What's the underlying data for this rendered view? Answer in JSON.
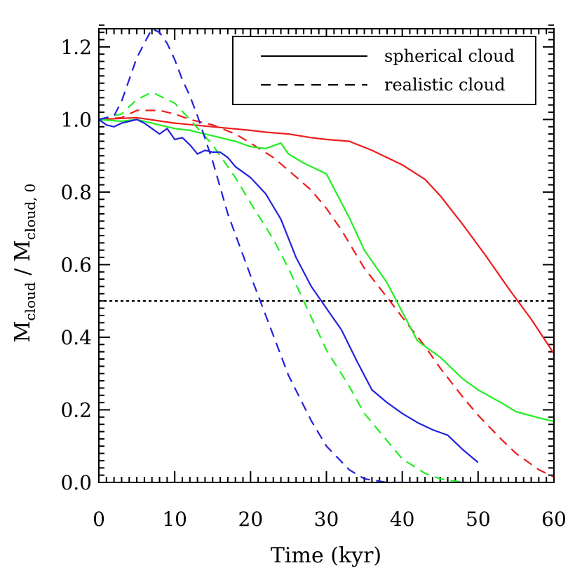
{
  "chart_data": {
    "type": "line",
    "title": "",
    "xlabel": "Time (kyr)",
    "ylabel": {
      "text": "M",
      "sub": "cloud",
      "sep": " / M",
      "sub2": "cloud, 0"
    },
    "xlim": [
      0,
      60
    ],
    "ylim": [
      0,
      1.25
    ],
    "xticks": [
      0,
      10,
      20,
      30,
      40,
      50,
      60
    ],
    "yticks": [
      0.0,
      0.2,
      0.4,
      0.6,
      0.8,
      1.0,
      1.2
    ],
    "xtick_labels": [
      "0",
      "10",
      "20",
      "30",
      "40",
      "50",
      "60"
    ],
    "ytick_labels": [
      "0.0",
      "0.2",
      "0.4",
      "0.6",
      "0.8",
      "1.0",
      "1.2"
    ],
    "grid": false,
    "legend": {
      "placement": "top-right",
      "entries": [
        {
          "label": "spherical cloud",
          "style": "solid"
        },
        {
          "label": "realistic cloud",
          "style": "dashed"
        }
      ]
    },
    "reference_line": {
      "y": 0.5,
      "style": "dotted",
      "color": "#000000"
    },
    "series": [
      {
        "color": "#ee1c1c",
        "style": "solid",
        "x": [
          0,
          5,
          10,
          15,
          20,
          22,
          25,
          28,
          30,
          33,
          36,
          40,
          43,
          45,
          48,
          51,
          54,
          57,
          60
        ],
        "y": [
          1.0,
          1.005,
          0.99,
          0.98,
          0.97,
          0.965,
          0.96,
          0.95,
          0.945,
          0.94,
          0.915,
          0.875,
          0.835,
          0.79,
          0.71,
          0.625,
          0.535,
          0.45,
          0.355
        ]
      },
      {
        "color": "#ee1c1c",
        "style": "dashed",
        "x": [
          0,
          3,
          5,
          8,
          10,
          12,
          15,
          18,
          20,
          23,
          25,
          28,
          30,
          32,
          35,
          38,
          40,
          43,
          45,
          48,
          50,
          53,
          55,
          58,
          60
        ],
        "y": [
          1.0,
          1.005,
          1.025,
          1.025,
          1.015,
          1.0,
          0.985,
          0.96,
          0.935,
          0.895,
          0.86,
          0.805,
          0.755,
          0.695,
          0.59,
          0.51,
          0.455,
          0.375,
          0.315,
          0.235,
          0.185,
          0.12,
          0.08,
          0.035,
          0.015
        ]
      },
      {
        "color": "#22ee22",
        "style": "solid",
        "x": [
          0,
          3,
          5,
          8,
          10,
          12,
          15,
          18,
          20,
          22,
          24,
          25,
          27,
          30,
          33,
          35,
          38,
          40,
          42,
          45,
          48,
          50,
          53,
          55,
          58,
          60
        ],
        "y": [
          1.0,
          0.995,
          1.0,
          0.985,
          0.975,
          0.97,
          0.955,
          0.94,
          0.925,
          0.92,
          0.935,
          0.905,
          0.88,
          0.85,
          0.73,
          0.64,
          0.55,
          0.47,
          0.39,
          0.345,
          0.285,
          0.255,
          0.22,
          0.195,
          0.178,
          0.168
        ]
      },
      {
        "color": "#22ee22",
        "style": "dashed",
        "x": [
          0,
          3,
          5,
          7,
          10,
          12,
          15,
          18,
          20,
          23,
          25,
          27,
          30,
          33,
          35,
          38,
          40,
          43,
          45,
          48,
          50
        ],
        "y": [
          1.0,
          1.015,
          1.055,
          1.075,
          1.045,
          1.0,
          0.93,
          0.84,
          0.77,
          0.67,
          0.59,
          0.5,
          0.365,
          0.265,
          0.19,
          0.115,
          0.065,
          0.025,
          0.01,
          0.0,
          0.0
        ]
      },
      {
        "color": "#2222dd",
        "style": "solid",
        "x": [
          0,
          1,
          2,
          3,
          4,
          5,
          6,
          7,
          8,
          9,
          10,
          11,
          12,
          13,
          14,
          15,
          16,
          17,
          18,
          20,
          22,
          24,
          26,
          28,
          30,
          32,
          34,
          36,
          38,
          40,
          42,
          44,
          46,
          48,
          50
        ],
        "y": [
          1.0,
          0.985,
          0.98,
          0.99,
          0.995,
          1.0,
          0.99,
          0.975,
          0.96,
          0.975,
          0.945,
          0.95,
          0.93,
          0.905,
          0.915,
          0.91,
          0.91,
          0.895,
          0.87,
          0.84,
          0.795,
          0.725,
          0.62,
          0.54,
          0.48,
          0.42,
          0.335,
          0.255,
          0.22,
          0.19,
          0.165,
          0.145,
          0.13,
          0.09,
          0.055
        ]
      },
      {
        "color": "#2222dd",
        "style": "dashed",
        "x": [
          0,
          2,
          3,
          5,
          7,
          8,
          9,
          10,
          11,
          12,
          13,
          15,
          17,
          20,
          22,
          25,
          28,
          30,
          33,
          35,
          38,
          40,
          45,
          50
        ],
        "y": [
          1.0,
          1.01,
          1.05,
          1.17,
          1.25,
          1.24,
          1.21,
          1.165,
          1.11,
          1.065,
          1.01,
          0.885,
          0.74,
          0.57,
          0.46,
          0.295,
          0.17,
          0.1,
          0.035,
          0.01,
          0.0,
          0.0,
          0.0,
          0.0
        ]
      }
    ]
  }
}
